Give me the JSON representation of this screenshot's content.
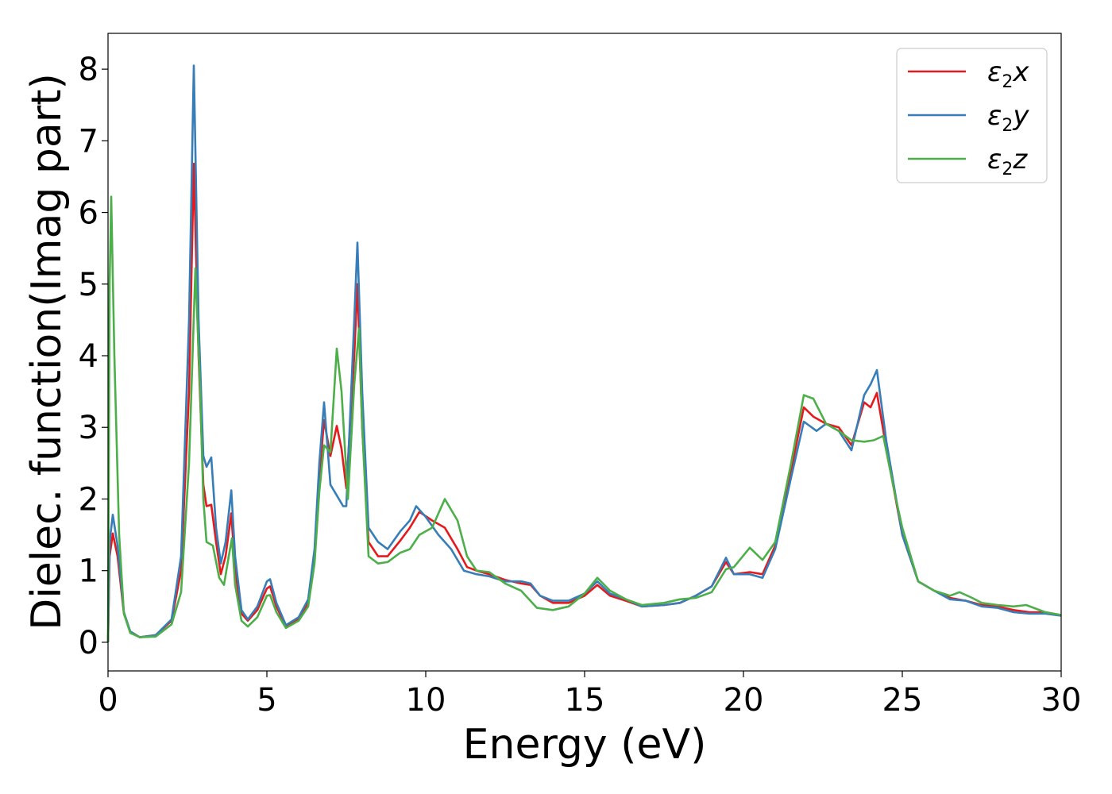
{
  "chart_data": {
    "type": "line",
    "title": "",
    "xlabel": "Energy (eV)",
    "ylabel": "Dielec. function(Imag part)",
    "xlim": [
      0,
      30
    ],
    "ylim": [
      -0.4,
      8.5
    ],
    "xticks": [
      0,
      5,
      10,
      15,
      20,
      25,
      30
    ],
    "yticks": [
      0,
      1,
      2,
      3,
      4,
      5,
      6,
      7,
      8
    ],
    "grid": false,
    "legend_position": "top-right",
    "series": [
      {
        "name": "ε2x",
        "legend": {
          "main": "ε",
          "sub": "2",
          "suffix": "x"
        },
        "color": "#e41a1c",
        "points": [
          [
            0,
            0
          ],
          [
            0.05,
            1.2
          ],
          [
            0.15,
            1.52
          ],
          [
            0.3,
            1.2
          ],
          [
            0.5,
            0.4
          ],
          [
            0.7,
            0.15
          ],
          [
            1.0,
            0.07
          ],
          [
            1.5,
            0.1
          ],
          [
            2.0,
            0.3
          ],
          [
            2.3,
            1.0
          ],
          [
            2.55,
            3.5
          ],
          [
            2.7,
            6.68
          ],
          [
            2.85,
            4.0
          ],
          [
            3.0,
            2.2
          ],
          [
            3.1,
            1.9
          ],
          [
            3.25,
            1.92
          ],
          [
            3.4,
            1.4
          ],
          [
            3.55,
            0.95
          ],
          [
            3.7,
            1.2
          ],
          [
            3.88,
            1.8
          ],
          [
            4.0,
            1.0
          ],
          [
            4.2,
            0.4
          ],
          [
            4.4,
            0.3
          ],
          [
            4.7,
            0.45
          ],
          [
            5.0,
            0.75
          ],
          [
            5.1,
            0.78
          ],
          [
            5.3,
            0.5
          ],
          [
            5.6,
            0.22
          ],
          [
            6.0,
            0.32
          ],
          [
            6.3,
            0.55
          ],
          [
            6.5,
            1.2
          ],
          [
            6.65,
            2.3
          ],
          [
            6.8,
            3.1
          ],
          [
            7.0,
            2.6
          ],
          [
            7.2,
            3.02
          ],
          [
            7.35,
            2.7
          ],
          [
            7.5,
            2.15
          ],
          [
            7.75,
            4.0
          ],
          [
            7.85,
            5.0
          ],
          [
            8.0,
            3.0
          ],
          [
            8.2,
            1.4
          ],
          [
            8.5,
            1.2
          ],
          [
            8.8,
            1.2
          ],
          [
            9.2,
            1.42
          ],
          [
            9.5,
            1.6
          ],
          [
            9.8,
            1.82
          ],
          [
            10.2,
            1.7
          ],
          [
            10.6,
            1.6
          ],
          [
            11.0,
            1.3
          ],
          [
            11.3,
            1.05
          ],
          [
            11.6,
            1.0
          ],
          [
            12.0,
            0.95
          ],
          [
            12.5,
            0.87
          ],
          [
            13.0,
            0.82
          ],
          [
            13.3,
            0.8
          ],
          [
            13.6,
            0.65
          ],
          [
            14.0,
            0.55
          ],
          [
            14.5,
            0.55
          ],
          [
            15.0,
            0.65
          ],
          [
            15.4,
            0.8
          ],
          [
            15.8,
            0.65
          ],
          [
            16.3,
            0.58
          ],
          [
            16.8,
            0.5
          ],
          [
            17.5,
            0.52
          ],
          [
            18.0,
            0.55
          ],
          [
            18.5,
            0.65
          ],
          [
            19.0,
            0.78
          ],
          [
            19.45,
            1.12
          ],
          [
            19.7,
            0.95
          ],
          [
            20.2,
            0.98
          ],
          [
            20.6,
            0.95
          ],
          [
            21.0,
            1.35
          ],
          [
            21.5,
            2.4
          ],
          [
            21.9,
            3.28
          ],
          [
            22.2,
            3.15
          ],
          [
            22.6,
            3.05
          ],
          [
            23.0,
            3.0
          ],
          [
            23.4,
            2.75
          ],
          [
            23.8,
            3.35
          ],
          [
            24.0,
            3.28
          ],
          [
            24.2,
            3.48
          ],
          [
            24.5,
            2.7
          ],
          [
            25.0,
            1.5
          ],
          [
            25.5,
            0.85
          ],
          [
            26.0,
            0.72
          ],
          [
            26.5,
            0.62
          ],
          [
            27.0,
            0.58
          ],
          [
            27.5,
            0.52
          ],
          [
            28.0,
            0.5
          ],
          [
            28.5,
            0.45
          ],
          [
            29.0,
            0.42
          ],
          [
            29.5,
            0.42
          ],
          [
            30.0,
            0.38
          ]
        ]
      },
      {
        "name": "ε2y",
        "legend": {
          "main": "ε",
          "sub": "2",
          "suffix": "y"
        },
        "color": "#377eb8",
        "points": [
          [
            0,
            0
          ],
          [
            0.05,
            1.4
          ],
          [
            0.15,
            1.78
          ],
          [
            0.3,
            1.35
          ],
          [
            0.5,
            0.42
          ],
          [
            0.7,
            0.15
          ],
          [
            1.0,
            0.07
          ],
          [
            1.5,
            0.1
          ],
          [
            2.0,
            0.32
          ],
          [
            2.3,
            1.2
          ],
          [
            2.55,
            4.5
          ],
          [
            2.7,
            8.05
          ],
          [
            2.85,
            4.5
          ],
          [
            3.0,
            2.6
          ],
          [
            3.1,
            2.45
          ],
          [
            3.25,
            2.58
          ],
          [
            3.4,
            1.6
          ],
          [
            3.55,
            1.1
          ],
          [
            3.7,
            1.4
          ],
          [
            3.88,
            2.12
          ],
          [
            4.0,
            1.2
          ],
          [
            4.2,
            0.45
          ],
          [
            4.4,
            0.32
          ],
          [
            4.7,
            0.5
          ],
          [
            5.0,
            0.85
          ],
          [
            5.1,
            0.88
          ],
          [
            5.3,
            0.55
          ],
          [
            5.6,
            0.24
          ],
          [
            6.0,
            0.35
          ],
          [
            6.3,
            0.6
          ],
          [
            6.5,
            1.3
          ],
          [
            6.65,
            2.5
          ],
          [
            6.8,
            3.35
          ],
          [
            7.0,
            2.2
          ],
          [
            7.2,
            2.05
          ],
          [
            7.4,
            1.9
          ],
          [
            7.5,
            1.9
          ],
          [
            7.75,
            4.5
          ],
          [
            7.85,
            5.58
          ],
          [
            8.0,
            3.5
          ],
          [
            8.2,
            1.6
          ],
          [
            8.5,
            1.4
          ],
          [
            8.8,
            1.3
          ],
          [
            9.2,
            1.55
          ],
          [
            9.5,
            1.7
          ],
          [
            9.7,
            1.9
          ],
          [
            10.0,
            1.75
          ],
          [
            10.4,
            1.5
          ],
          [
            10.8,
            1.3
          ],
          [
            11.2,
            1.0
          ],
          [
            11.6,
            0.95
          ],
          [
            12.0,
            0.92
          ],
          [
            12.5,
            0.85
          ],
          [
            13.0,
            0.85
          ],
          [
            13.3,
            0.82
          ],
          [
            13.6,
            0.65
          ],
          [
            14.0,
            0.58
          ],
          [
            14.5,
            0.58
          ],
          [
            15.0,
            0.68
          ],
          [
            15.4,
            0.85
          ],
          [
            15.8,
            0.68
          ],
          [
            16.3,
            0.6
          ],
          [
            16.8,
            0.5
          ],
          [
            17.5,
            0.52
          ],
          [
            18.0,
            0.55
          ],
          [
            18.5,
            0.65
          ],
          [
            19.0,
            0.78
          ],
          [
            19.45,
            1.18
          ],
          [
            19.7,
            0.95
          ],
          [
            20.2,
            0.95
          ],
          [
            20.6,
            0.9
          ],
          [
            21.0,
            1.3
          ],
          [
            21.5,
            2.3
          ],
          [
            21.9,
            3.08
          ],
          [
            22.3,
            2.95
          ],
          [
            22.6,
            3.05
          ],
          [
            23.0,
            2.95
          ],
          [
            23.4,
            2.68
          ],
          [
            23.8,
            3.45
          ],
          [
            24.0,
            3.6
          ],
          [
            24.2,
            3.8
          ],
          [
            24.5,
            2.8
          ],
          [
            25.0,
            1.5
          ],
          [
            25.5,
            0.85
          ],
          [
            26.0,
            0.72
          ],
          [
            26.5,
            0.6
          ],
          [
            27.0,
            0.58
          ],
          [
            27.5,
            0.5
          ],
          [
            28.0,
            0.48
          ],
          [
            28.5,
            0.42
          ],
          [
            29.0,
            0.4
          ],
          [
            29.5,
            0.4
          ],
          [
            30.0,
            0.37
          ]
        ]
      },
      {
        "name": "ε2z",
        "legend": {
          "main": "ε",
          "sub": "2",
          "suffix": "z"
        },
        "color": "#4daf4a",
        "points": [
          [
            0,
            0
          ],
          [
            0.05,
            5.0
          ],
          [
            0.1,
            6.22
          ],
          [
            0.2,
            4.0
          ],
          [
            0.35,
            1.5
          ],
          [
            0.5,
            0.4
          ],
          [
            0.7,
            0.13
          ],
          [
            1.0,
            0.07
          ],
          [
            1.5,
            0.08
          ],
          [
            2.0,
            0.25
          ],
          [
            2.3,
            0.7
          ],
          [
            2.55,
            2.5
          ],
          [
            2.75,
            5.22
          ],
          [
            2.9,
            3.5
          ],
          [
            3.0,
            2.0
          ],
          [
            3.1,
            1.4
          ],
          [
            3.3,
            1.35
          ],
          [
            3.5,
            0.9
          ],
          [
            3.65,
            0.8
          ],
          [
            3.8,
            1.2
          ],
          [
            3.9,
            1.45
          ],
          [
            4.0,
            0.8
          ],
          [
            4.2,
            0.3
          ],
          [
            4.4,
            0.22
          ],
          [
            4.7,
            0.35
          ],
          [
            5.0,
            0.65
          ],
          [
            5.1,
            0.66
          ],
          [
            5.3,
            0.42
          ],
          [
            5.6,
            0.2
          ],
          [
            6.0,
            0.3
          ],
          [
            6.3,
            0.5
          ],
          [
            6.5,
            1.1
          ],
          [
            6.65,
            2.1
          ],
          [
            6.8,
            2.75
          ],
          [
            7.0,
            2.65
          ],
          [
            7.2,
            4.1
          ],
          [
            7.35,
            3.5
          ],
          [
            7.55,
            2.0
          ],
          [
            7.75,
            3.6
          ],
          [
            7.9,
            4.38
          ],
          [
            8.0,
            3.0
          ],
          [
            8.2,
            1.2
          ],
          [
            8.5,
            1.1
          ],
          [
            8.8,
            1.12
          ],
          [
            9.2,
            1.25
          ],
          [
            9.5,
            1.3
          ],
          [
            9.8,
            1.5
          ],
          [
            10.2,
            1.6
          ],
          [
            10.6,
            2.0
          ],
          [
            11.0,
            1.7
          ],
          [
            11.3,
            1.2
          ],
          [
            11.6,
            1.0
          ],
          [
            12.0,
            0.98
          ],
          [
            12.5,
            0.82
          ],
          [
            13.0,
            0.72
          ],
          [
            13.5,
            0.48
          ],
          [
            14.0,
            0.45
          ],
          [
            14.5,
            0.5
          ],
          [
            15.0,
            0.68
          ],
          [
            15.4,
            0.9
          ],
          [
            15.8,
            0.72
          ],
          [
            16.3,
            0.6
          ],
          [
            16.8,
            0.52
          ],
          [
            17.5,
            0.55
          ],
          [
            18.0,
            0.6
          ],
          [
            18.5,
            0.62
          ],
          [
            19.0,
            0.7
          ],
          [
            19.45,
            1.02
          ],
          [
            19.7,
            1.05
          ],
          [
            20.2,
            1.32
          ],
          [
            20.6,
            1.15
          ],
          [
            21.0,
            1.4
          ],
          [
            21.5,
            2.5
          ],
          [
            21.9,
            3.45
          ],
          [
            22.2,
            3.4
          ],
          [
            22.6,
            3.05
          ],
          [
            23.0,
            2.95
          ],
          [
            23.4,
            2.82
          ],
          [
            23.8,
            2.8
          ],
          [
            24.1,
            2.82
          ],
          [
            24.4,
            2.88
          ],
          [
            24.8,
            2.0
          ],
          [
            25.0,
            1.6
          ],
          [
            25.5,
            0.85
          ],
          [
            26.0,
            0.72
          ],
          [
            26.5,
            0.65
          ],
          [
            26.8,
            0.7
          ],
          [
            27.2,
            0.62
          ],
          [
            27.5,
            0.55
          ],
          [
            28.0,
            0.52
          ],
          [
            28.5,
            0.5
          ],
          [
            28.9,
            0.52
          ],
          [
            29.5,
            0.42
          ],
          [
            30.0,
            0.38
          ]
        ]
      }
    ]
  }
}
